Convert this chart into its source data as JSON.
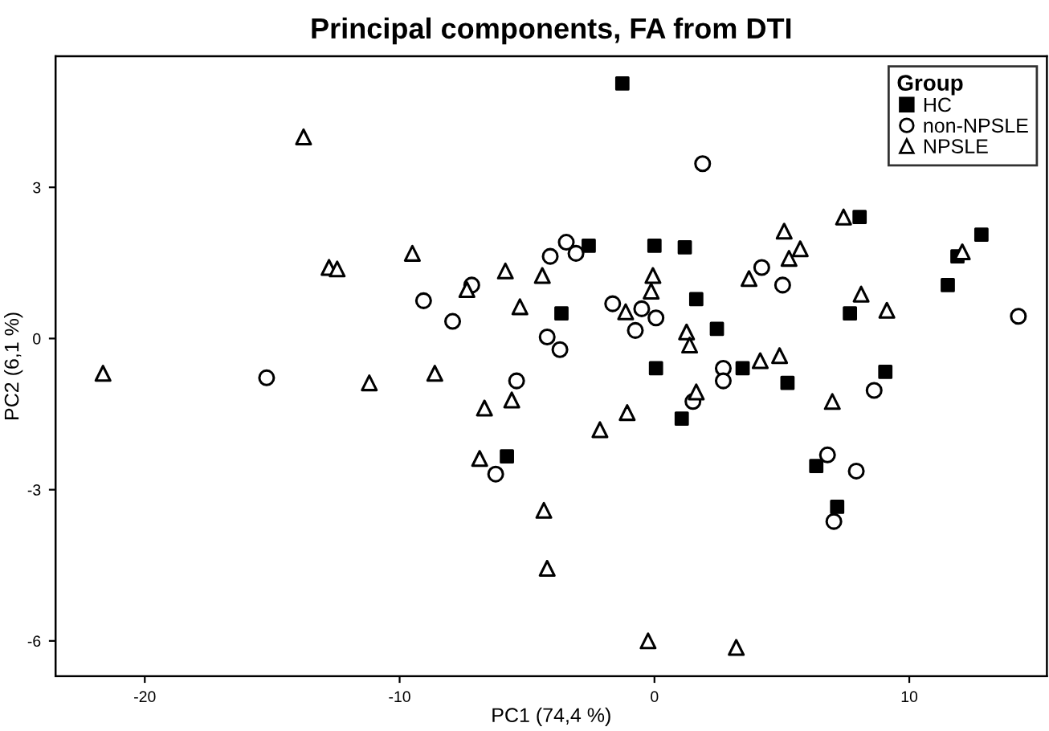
{
  "chart_data": {
    "type": "scatter",
    "title": "Principal components, FA from DTI",
    "xlabel": "PC1 (74,4 %)",
    "ylabel": "PC2 (6,1 %)",
    "legend_title": "Group",
    "legend": "top right",
    "grid": false,
    "xlim": [
      -23.5,
      15.4
    ],
    "ylim": [
      -6.7,
      5.6
    ],
    "xticks": [
      -20,
      -10,
      0,
      10
    ],
    "yticks": [
      -6,
      -3,
      0,
      3
    ],
    "series": [
      {
        "name": "HC",
        "color": "#000000",
        "marker": "square",
        "x": [
          -1.26,
          -2.58,
          0,
          1.19,
          1.64,
          -3.65,
          2.45,
          8.05,
          12.83,
          11.89,
          11.51,
          7.67,
          0.06,
          3.46,
          5.22,
          1.07,
          9.06,
          6.35,
          7.17,
          -5.79
        ],
        "values": [
          5.06,
          1.84,
          1.84,
          1.81,
          0.78,
          0.5,
          0.19,
          2.41,
          2.06,
          1.63,
          1.06,
          0.5,
          -0.59,
          -0.59,
          -0.88,
          -1.59,
          -0.66,
          -2.53,
          -3.34,
          -2.34
        ]
      },
      {
        "name": "non-NPSLE",
        "color": "#000000",
        "marker": "circle",
        "x": [
          1.89,
          -3.46,
          -4.09,
          -3.08,
          -7.17,
          -9.06,
          -7.92,
          -1.64,
          -0.5,
          0.06,
          -0.75,
          -4.21,
          -3.71,
          4.21,
          5.03,
          14.28,
          -15.22,
          -5.41,
          2.7,
          2.7,
          1.51,
          8.62,
          6.79,
          7.92,
          7.04,
          -6.23
        ],
        "values": [
          3.47,
          1.91,
          1.63,
          1.69,
          1.06,
          0.75,
          0.34,
          0.69,
          0.59,
          0.41,
          0.16,
          0.03,
          -0.22,
          1.41,
          1.06,
          0.44,
          -0.78,
          -0.84,
          -0.59,
          -0.84,
          -1.25,
          -1.03,
          -2.31,
          -2.63,
          -3.63,
          -2.69
        ]
      },
      {
        "name": "NPSLE",
        "color": "#000000",
        "marker": "triangle",
        "x": [
          -13.77,
          -12.77,
          -12.45,
          -9.5,
          -5.85,
          -4.4,
          -0.06,
          -0.13,
          -7.36,
          -5.28,
          -1.13,
          1.26,
          1.38,
          7.42,
          5.09,
          5.72,
          5.28,
          3.71,
          12.08,
          8.11,
          9.12,
          -21.64,
          -11.19,
          -8.62,
          -5.6,
          -6.67,
          1.64,
          -1.07,
          -2.14,
          4.15,
          4.91,
          6.98,
          -6.86,
          -4.34,
          -4.21,
          -0.25,
          3.21
        ],
        "values": [
          4.0,
          1.41,
          1.38,
          1.69,
          1.34,
          1.25,
          1.25,
          0.94,
          0.97,
          0.63,
          0.53,
          0.13,
          -0.13,
          2.41,
          2.13,
          1.78,
          1.59,
          1.19,
          1.72,
          0.88,
          0.56,
          -0.69,
          -0.88,
          -0.69,
          -1.22,
          -1.38,
          -1.06,
          -1.47,
          -1.81,
          -0.44,
          -0.34,
          -1.25,
          -2.38,
          -3.41,
          -4.56,
          -6.0,
          -6.13
        ]
      }
    ]
  }
}
